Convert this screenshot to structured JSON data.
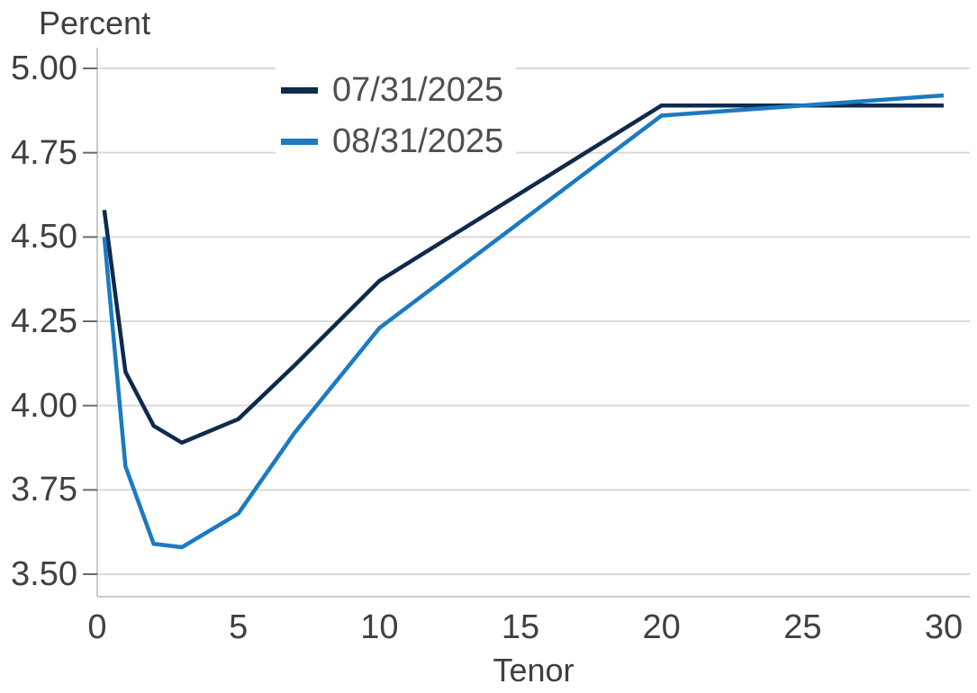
{
  "chart": {
    "title": "Percent",
    "x_axis_title": "Tenor"
  },
  "chart_data": {
    "type": "line",
    "title": "Percent",
    "xlabel": "Tenor",
    "ylabel": "Percent",
    "x": [
      0.25,
      1,
      2,
      3,
      5,
      7,
      10,
      20,
      30
    ],
    "series": [
      {
        "name": "07/31/2025",
        "color": "#102A4E",
        "values": [
          4.58,
          4.1,
          3.94,
          3.89,
          3.96,
          4.12,
          4.37,
          4.89,
          4.89
        ]
      },
      {
        "name": "08/31/2025",
        "color": "#1B7AC2",
        "values": [
          4.5,
          3.82,
          3.59,
          3.58,
          3.68,
          3.92,
          4.23,
          4.86,
          4.92
        ]
      }
    ],
    "xlim": [
      0,
      30
    ],
    "ylim": [
      3.5,
      5.0
    ],
    "x_ticks": [
      0,
      5,
      10,
      15,
      20,
      25,
      30
    ],
    "x_tick_labels": [
      "0",
      "5",
      "10",
      "15",
      "20",
      "25",
      "30"
    ],
    "y_ticks": [
      3.5,
      3.75,
      4.0,
      4.25,
      4.5,
      4.75,
      5.0
    ],
    "y_tick_labels": [
      "3.50",
      "3.75",
      "4.00",
      "4.25",
      "4.50",
      "4.75",
      "5.00"
    ],
    "grid": "horizontal",
    "legend_position": "inside-top-left"
  },
  "colors": {
    "background": "#FFFFFF",
    "gridline": "#D9D9D9",
    "axis_line": "#C9C9C9",
    "tick_mark": "#6B6B6B",
    "label_text": "#404040",
    "legend_text": "#4F4F4F",
    "series_dark": "#102A4E",
    "series_light": "#1B7AC2"
  }
}
